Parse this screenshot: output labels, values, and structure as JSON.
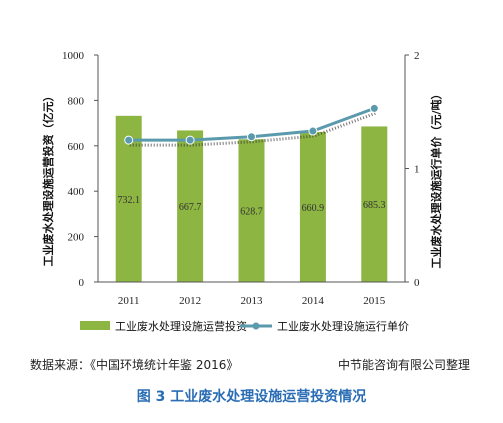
{
  "chart_data": {
    "type": "bar",
    "categories": [
      "2011",
      "2012",
      "2013",
      "2014",
      "2015"
    ],
    "series": [
      {
        "name": "工业废水处理设施运营投资",
        "kind": "bar",
        "axis": "left",
        "values": [
          732.1,
          667.7,
          628.7,
          660.9,
          685.3
        ],
        "labels": [
          "732.1",
          "667.7",
          "628.7",
          "660.9",
          "685.3"
        ],
        "color": "#8db542"
      },
      {
        "name": "工业废水处理设施运行单价",
        "kind": "line",
        "axis": "right",
        "values": [
          1.25,
          1.25,
          1.28,
          1.33,
          1.53
        ],
        "color": "#5b9aad"
      }
    ],
    "ylabel": "工业废水处理设施运营投资（亿元）",
    "y2label": "工业废水处理设施运行单价（元/吨）",
    "ylim": [
      0,
      1000
    ],
    "yticks": [
      "0",
      "200",
      "400",
      "600",
      "800",
      "1000"
    ],
    "y2lim": [
      0,
      2
    ],
    "y2ticks": [
      "0",
      "1",
      "2"
    ],
    "legend_position": "bottom",
    "grid": false
  },
  "source": {
    "left": "数据来源：《中国环境统计年鉴 2016》",
    "right": "中节能咨询有限公司整理"
  },
  "caption": "图  3  工业废水处理设施运营投资情况"
}
